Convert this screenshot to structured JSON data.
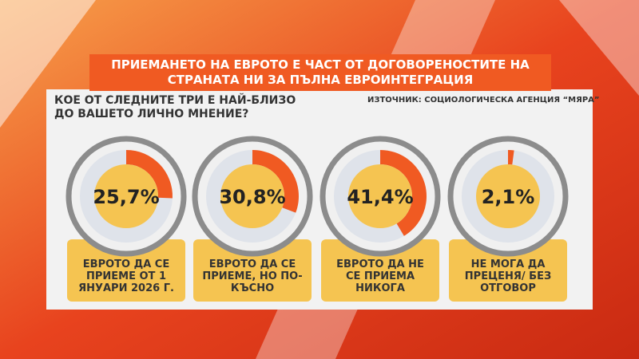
{
  "chart_data": {
    "type": "donut",
    "title": "ПРИЕМАНЕТО НА ЕВРОТО Е ЧАСТ ОТ ДОГОВОРЕНОСТИТЕ НА СТРАНАТА НИ ЗА ПЪЛНА ЕВРОИНТЕГРАЦИЯ",
    "subtitle": "КОЕ ОТ СЛЕДНИТЕ ТРИ Е НАЙ-БЛИЗО ДО ВАШЕТО ЛИЧНО МНЕНИЕ?",
    "source": "ИЗТОЧНИК: СОЦИОЛОГИЧЕСКА АГЕНЦИЯ “МЯРА”",
    "categories": [
      "ЕВРОТО ДА СЕ ПРИЕМЕ ОТ 1 ЯНУАРИ 2026 Г.",
      "ЕВРОТО ДА СЕ ПРИЕМЕ, НО ПО-КЪСНО",
      "ЕВРОТО ДА НЕ СЕ ПРИЕМА НИКОГА",
      "НЕ МОГА ДА ПРЕЦЕНЯ/ БЕЗ ОТГОВОР"
    ],
    "values": [
      25.7,
      30.8,
      41.4,
      2.1
    ],
    "value_labels": [
      "25,7%",
      "30,8%",
      "41,4%",
      "2,1%"
    ],
    "color": "#f05a22"
  }
}
